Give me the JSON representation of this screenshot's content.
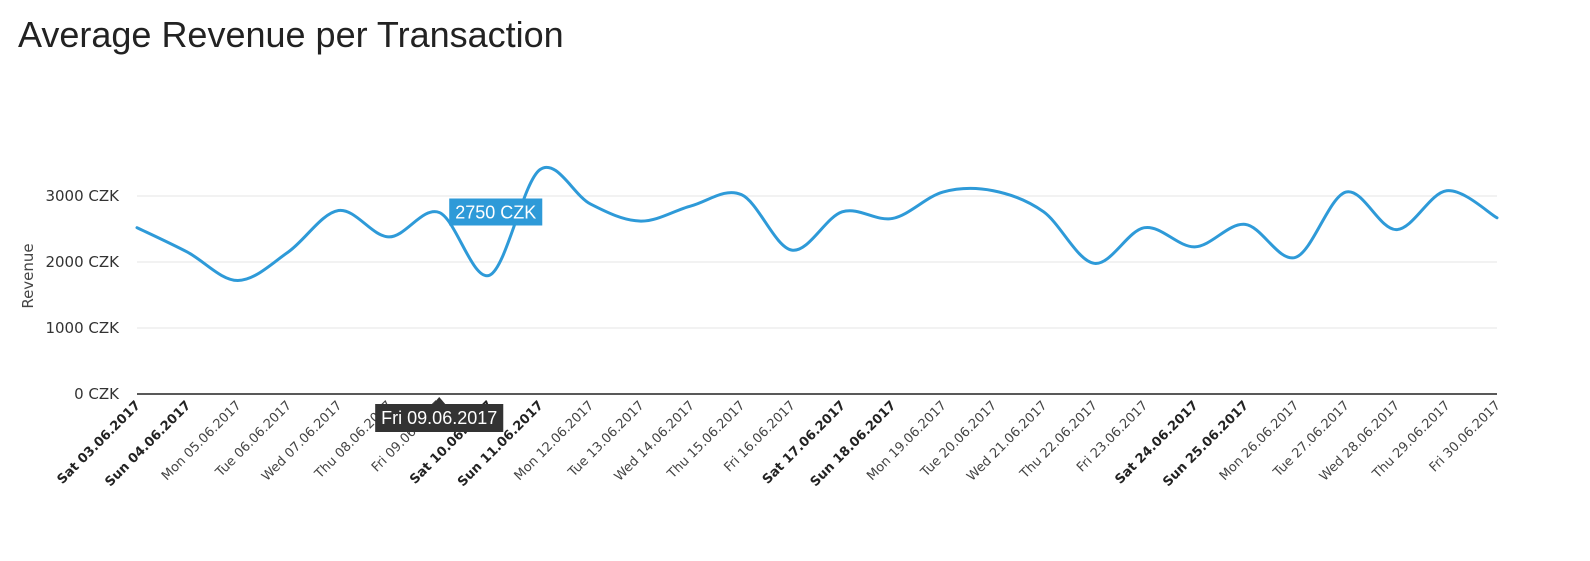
{
  "page": {
    "title": "Average Revenue per Transaction"
  },
  "chart_data": {
    "type": "line",
    "title": "Average Revenue per Transaction",
    "xlabel": "",
    "ylabel": "Revenue",
    "ylim": [
      0,
      3000
    ],
    "ytick_values": [
      0,
      1000,
      2000,
      3000
    ],
    "ytick_labels": [
      "0 CZK",
      "1000 CZK",
      "2000 CZK",
      "3000 CZK"
    ],
    "grid": true,
    "line_color": "#2e9ad8",
    "categories": [
      "Sat 03.06.2017",
      "Sun 04.06.2017",
      "Mon 05.06.2017",
      "Tue 06.06.2017",
      "Wed 07.06.2017",
      "Thu 08.06.2017",
      "Fri 09.06.2017",
      "Sat 10.06.2017",
      "Sun 11.06.2017",
      "Mon 12.06.2017",
      "Tue 13.06.2017",
      "Wed 14.06.2017",
      "Thu 15.06.2017",
      "Fri 16.06.2017",
      "Sat 17.06.2017",
      "Sun 18.06.2017",
      "Mon 19.06.2017",
      "Tue 20.06.2017",
      "Wed 21.06.2017",
      "Thu 22.06.2017",
      "Fri 23.06.2017",
      "Sat 24.06.2017",
      "Sun 25.06.2017",
      "Mon 26.06.2017",
      "Tue 27.06.2017",
      "Wed 28.06.2017",
      "Thu 29.06.2017",
      "Fri 30.06.2017"
    ],
    "weekend_categories": [
      "Sat 03.06.2017",
      "Sun 04.06.2017",
      "Sat 10.06.2017",
      "Sun 11.06.2017",
      "Sat 17.06.2017",
      "Sun 18.06.2017",
      "Sat 24.06.2017",
      "Sun 25.06.2017"
    ],
    "series": [
      {
        "values": [
          2520,
          2150,
          1720,
          2150,
          2780,
          2380,
          2750,
          1800,
          3400,
          2880,
          2620,
          2850,
          3020,
          2180,
          2760,
          2660,
          3060,
          3080,
          2760,
          1980,
          2520,
          2230,
          2570,
          2070,
          3060,
          2490,
          3080,
          2670
        ]
      }
    ],
    "tooltip": {
      "category": "Fri 09.06.2017",
      "value_label": "2750 CZK",
      "date_label": "Fri 09.06.2017"
    }
  }
}
